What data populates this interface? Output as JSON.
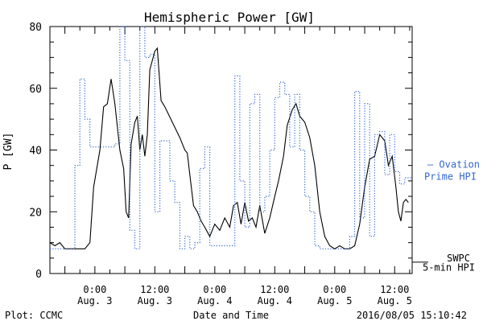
{
  "chart_data": {
    "type": "line",
    "title": "Hemispheric Power [GW]",
    "ylabel": "P [GW]",
    "xlabel": "Date and Time",
    "ylim": [
      0,
      80
    ],
    "y_ticks": [
      0,
      20,
      40,
      60,
      80
    ],
    "y_tick_labels": [
      "0",
      "20",
      "40",
      "60",
      "80"
    ],
    "xlim": [
      "2016-08-02T15:00",
      "2016-08-05T15:30"
    ],
    "x_ticks": [
      {
        "line1": "0:00",
        "line2": "Aug. 3",
        "t": "2016-08-03T00:00"
      },
      {
        "line1": "12:00",
        "line2": "Aug. 3",
        "t": "2016-08-03T12:00"
      },
      {
        "line1": "0:00",
        "line2": "Aug. 4",
        "t": "2016-08-04T00:00"
      },
      {
        "line1": "12:00",
        "line2": "Aug. 4",
        "t": "2016-08-04T12:00"
      },
      {
        "line1": "0:00",
        "line2": "Aug. 5",
        "t": "2016-08-05T00:00"
      },
      {
        "line1": "12:00",
        "line2": "Aug. 5",
        "t": "2016-08-05T12:00"
      }
    ],
    "grid": false,
    "series": [
      {
        "name": "SWPC",
        "color": "#000000",
        "style": "solid",
        "points": [
          [
            "2016-08-02T15:00",
            10
          ],
          [
            "2016-08-02T16:00",
            9
          ],
          [
            "2016-08-02T17:00",
            10
          ],
          [
            "2016-08-02T18:00",
            8
          ],
          [
            "2016-08-02T19:00",
            8
          ],
          [
            "2016-08-02T20:00",
            8
          ],
          [
            "2016-08-02T21:00",
            8
          ],
          [
            "2016-08-02T22:00",
            8
          ],
          [
            "2016-08-02T23:00",
            10
          ],
          [
            "2016-08-02T23:45",
            28
          ],
          [
            "2016-08-03T01:00",
            40
          ],
          [
            "2016-08-03T01:45",
            54
          ],
          [
            "2016-08-03T02:30",
            55
          ],
          [
            "2016-08-03T03:15",
            63
          ],
          [
            "2016-08-03T04:00",
            55
          ],
          [
            "2016-08-03T05:00",
            40
          ],
          [
            "2016-08-03T05:45",
            34
          ],
          [
            "2016-08-03T06:15",
            20
          ],
          [
            "2016-08-03T06:45",
            18
          ],
          [
            "2016-08-03T07:15",
            42
          ],
          [
            "2016-08-03T08:00",
            49
          ],
          [
            "2016-08-03T08:30",
            51
          ],
          [
            "2016-08-03T09:00",
            40
          ],
          [
            "2016-08-03T09:30",
            45
          ],
          [
            "2016-08-03T10:00",
            38
          ],
          [
            "2016-08-03T10:30",
            45
          ],
          [
            "2016-08-03T11:00",
            66
          ],
          [
            "2016-08-03T12:00",
            72
          ],
          [
            "2016-08-03T12:30",
            73
          ],
          [
            "2016-08-03T13:15",
            56
          ],
          [
            "2016-08-03T14:00",
            54
          ],
          [
            "2016-08-03T15:30",
            49
          ],
          [
            "2016-08-03T17:00",
            44
          ],
          [
            "2016-08-03T18:00",
            40
          ],
          [
            "2016-08-03T18:30",
            39
          ],
          [
            "2016-08-03T19:00",
            32
          ],
          [
            "2016-08-03T19:45",
            22
          ],
          [
            "2016-08-03T20:30",
            20
          ],
          [
            "2016-08-03T21:15",
            17
          ],
          [
            "2016-08-03T22:00",
            15
          ],
          [
            "2016-08-03T23:00",
            12
          ],
          [
            "2016-08-04T00:00",
            16
          ],
          [
            "2016-08-04T01:00",
            14
          ],
          [
            "2016-08-04T02:00",
            18
          ],
          [
            "2016-08-04T03:00",
            15
          ],
          [
            "2016-08-04T03:45",
            22
          ],
          [
            "2016-08-04T04:30",
            23
          ],
          [
            "2016-08-04T05:15",
            16
          ],
          [
            "2016-08-04T06:00",
            23
          ],
          [
            "2016-08-04T06:45",
            17
          ],
          [
            "2016-08-04T07:30",
            18
          ],
          [
            "2016-08-04T08:15",
            15
          ],
          [
            "2016-08-04T09:00",
            22
          ],
          [
            "2016-08-04T10:00",
            13
          ],
          [
            "2016-08-04T11:00",
            18
          ],
          [
            "2016-08-04T12:00",
            25
          ],
          [
            "2016-08-04T12:45",
            30
          ],
          [
            "2016-08-04T13:45",
            38
          ],
          [
            "2016-08-04T14:30",
            48
          ],
          [
            "2016-08-04T15:30",
            53
          ],
          [
            "2016-08-04T16:15",
            55
          ],
          [
            "2016-08-04T17:00",
            51
          ],
          [
            "2016-08-04T18:00",
            49
          ],
          [
            "2016-08-04T19:00",
            44
          ],
          [
            "2016-08-04T20:00",
            35
          ],
          [
            "2016-08-04T21:00",
            20
          ],
          [
            "2016-08-04T22:00",
            12
          ],
          [
            "2016-08-04T23:00",
            9
          ],
          [
            "2016-08-05T00:00",
            8
          ],
          [
            "2016-08-05T01:00",
            9
          ],
          [
            "2016-08-05T02:00",
            8
          ],
          [
            "2016-08-05T03:00",
            8
          ],
          [
            "2016-08-05T04:00",
            9
          ],
          [
            "2016-08-05T05:00",
            16
          ],
          [
            "2016-08-05T06:00",
            28
          ],
          [
            "2016-08-05T07:00",
            37
          ],
          [
            "2016-08-05T08:00",
            38
          ],
          [
            "2016-08-05T09:00",
            45
          ],
          [
            "2016-08-05T10:00",
            43
          ],
          [
            "2016-08-05T10:45",
            35
          ],
          [
            "2016-08-05T11:30",
            38
          ],
          [
            "2016-08-05T12:15",
            28
          ],
          [
            "2016-08-05T12:45",
            20
          ],
          [
            "2016-08-05T13:15",
            17
          ],
          [
            "2016-08-05T13:45",
            23
          ],
          [
            "2016-08-05T14:15",
            24
          ],
          [
            "2016-08-05T14:45",
            23
          ]
        ]
      },
      {
        "name": "Ovation Prime HPI",
        "color": "#3366cc",
        "style": "dotted-step",
        "points": [
          [
            "2016-08-02T15:00",
            8
          ],
          [
            "2016-08-02T20:00",
            35
          ],
          [
            "2016-08-02T21:00",
            63
          ],
          [
            "2016-08-02T22:00",
            50
          ],
          [
            "2016-08-02T23:00",
            41
          ],
          [
            "2016-08-03T04:00",
            42
          ],
          [
            "2016-08-03T05:00",
            80
          ],
          [
            "2016-08-03T06:00",
            69
          ],
          [
            "2016-08-03T07:00",
            14
          ],
          [
            "2016-08-03T08:00",
            8
          ],
          [
            "2016-08-03T09:00",
            80
          ],
          [
            "2016-08-03T10:00",
            70
          ],
          [
            "2016-08-03T11:00",
            71
          ],
          [
            "2016-08-03T12:00",
            20
          ],
          [
            "2016-08-03T13:00",
            43
          ],
          [
            "2016-08-03T14:00",
            43
          ],
          [
            "2016-08-03T15:00",
            30
          ],
          [
            "2016-08-03T16:00",
            23
          ],
          [
            "2016-08-03T17:00",
            8
          ],
          [
            "2016-08-03T18:00",
            12
          ],
          [
            "2016-08-03T19:00",
            8
          ],
          [
            "2016-08-03T20:00",
            10
          ],
          [
            "2016-08-03T21:00",
            34
          ],
          [
            "2016-08-03T22:00",
            41
          ],
          [
            "2016-08-03T23:00",
            9
          ],
          [
            "2016-08-04T04:00",
            64
          ],
          [
            "2016-08-04T05:00",
            30
          ],
          [
            "2016-08-04T06:00",
            15
          ],
          [
            "2016-08-04T07:00",
            55
          ],
          [
            "2016-08-04T08:00",
            58
          ],
          [
            "2016-08-04T09:00",
            20
          ],
          [
            "2016-08-04T10:00",
            25
          ],
          [
            "2016-08-04T11:00",
            40
          ],
          [
            "2016-08-04T12:00",
            57
          ],
          [
            "2016-08-04T13:00",
            62
          ],
          [
            "2016-08-04T14:00",
            58
          ],
          [
            "2016-08-04T15:00",
            41
          ],
          [
            "2016-08-04T16:00",
            58
          ],
          [
            "2016-08-04T17:00",
            40
          ],
          [
            "2016-08-04T18:00",
            25
          ],
          [
            "2016-08-04T19:00",
            20
          ],
          [
            "2016-08-04T20:00",
            9
          ],
          [
            "2016-08-04T21:00",
            8
          ],
          [
            "2016-08-05T03:00",
            12
          ],
          [
            "2016-08-05T04:00",
            59
          ],
          [
            "2016-08-05T05:00",
            18
          ],
          [
            "2016-08-05T06:00",
            55
          ],
          [
            "2016-08-05T07:00",
            12
          ],
          [
            "2016-08-05T08:00",
            45
          ],
          [
            "2016-08-05T09:00",
            46
          ],
          [
            "2016-08-05T10:00",
            32
          ],
          [
            "2016-08-05T11:00",
            45
          ],
          [
            "2016-08-05T12:00",
            33
          ],
          [
            "2016-08-05T13:00",
            29
          ],
          [
            "2016-08-05T14:00",
            31
          ]
        ]
      }
    ],
    "right_legend": {
      "ovation": {
        "line1": "— Ovation",
        "line2": "Prime HPI",
        "value": 33
      },
      "swpc": {
        "line1": "SWPC",
        "value": 5
      },
      "hpi": {
        "line1": "5-min HPI",
        "value": 2
      }
    }
  },
  "footer": {
    "left": "Plot: CCMC",
    "center": "Date and Time",
    "right": "2016/08/05 15:10:42"
  }
}
